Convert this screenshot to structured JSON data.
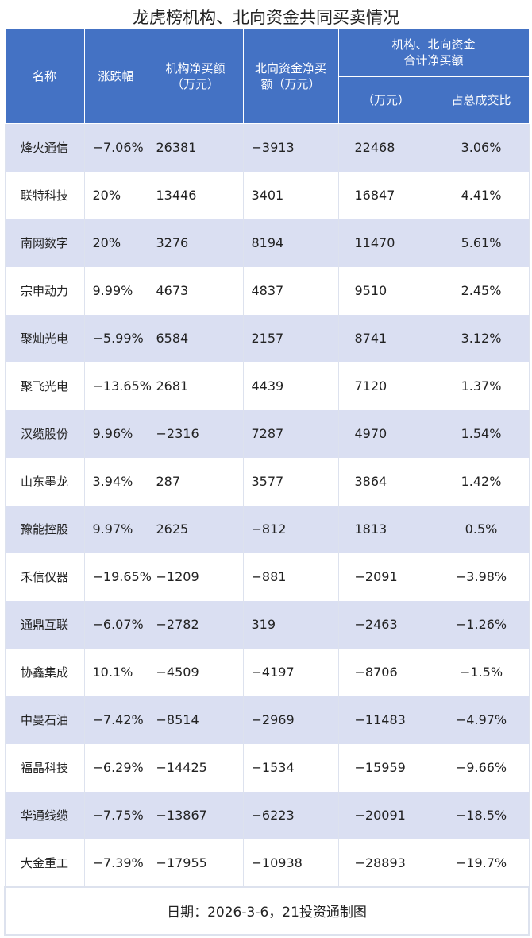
{
  "title": "龙虎榜机构、北向资金共同买卖情况",
  "headers": {
    "name": "名称",
    "change": "涨跌幅",
    "inst": "机构净买额\n（万元）",
    "north": "北向资金净买\n额（万元）",
    "combined_group": "机构、北向资金\n合计净买额",
    "combined_amount": "（万元）",
    "share": "占总成交比"
  },
  "rows": [
    [
      "烽火通信",
      "−7.06%",
      "26381",
      "−3913",
      "22468",
      "3.06%"
    ],
    [
      "联特科技",
      "20%",
      "13446",
      "3401",
      "16847",
      "4.41%"
    ],
    [
      "南网数字",
      "20%",
      "3276",
      "8194",
      "11470",
      "5.61%"
    ],
    [
      "宗申动力",
      "9.99%",
      "4673",
      "4837",
      "9510",
      "2.45%"
    ],
    [
      "聚灿光电",
      "−5.99%",
      "6584",
      "2157",
      "8741",
      "3.12%"
    ],
    [
      "聚飞光电",
      "−13.65%",
      "2681",
      "4439",
      "7120",
      "1.37%"
    ],
    [
      "汉缆股份",
      "9.96%",
      "−2316",
      "7287",
      "4970",
      "1.54%"
    ],
    [
      "山东墨龙",
      "3.94%",
      "287",
      "3577",
      "3864",
      "1.42%"
    ],
    [
      "豫能控股",
      "9.97%",
      "2625",
      "−812",
      "1813",
      "0.5%"
    ],
    [
      "禾信仪器",
      "−19.65%",
      "−1209",
      "−881",
      "−2091",
      "−3.98%"
    ],
    [
      "通鼎互联",
      "−6.07%",
      "−2782",
      "319",
      "−2463",
      "−1.26%"
    ],
    [
      "协鑫集成",
      "10.1%",
      "−4509",
      "−4197",
      "−8706",
      "−1.5%"
    ],
    [
      "中曼石油",
      "−7.42%",
      "−8514",
      "−2969",
      "−11483",
      "−4.97%"
    ],
    [
      "福晶科技",
      "−6.29%",
      "−14425",
      "−1534",
      "−15959",
      "−9.66%"
    ],
    [
      "华通线缆",
      "−7.75%",
      "−13867",
      "−6223",
      "−20091",
      "−18.5%"
    ],
    [
      "大金重工",
      "−7.39%",
      "−17955",
      "−10938",
      "−28893",
      "−19.7%"
    ]
  ],
  "footer": "日期：2026-3-6，21投资通制图",
  "colors": {
    "header": "#4472c4",
    "stripe": "#dadff2"
  }
}
